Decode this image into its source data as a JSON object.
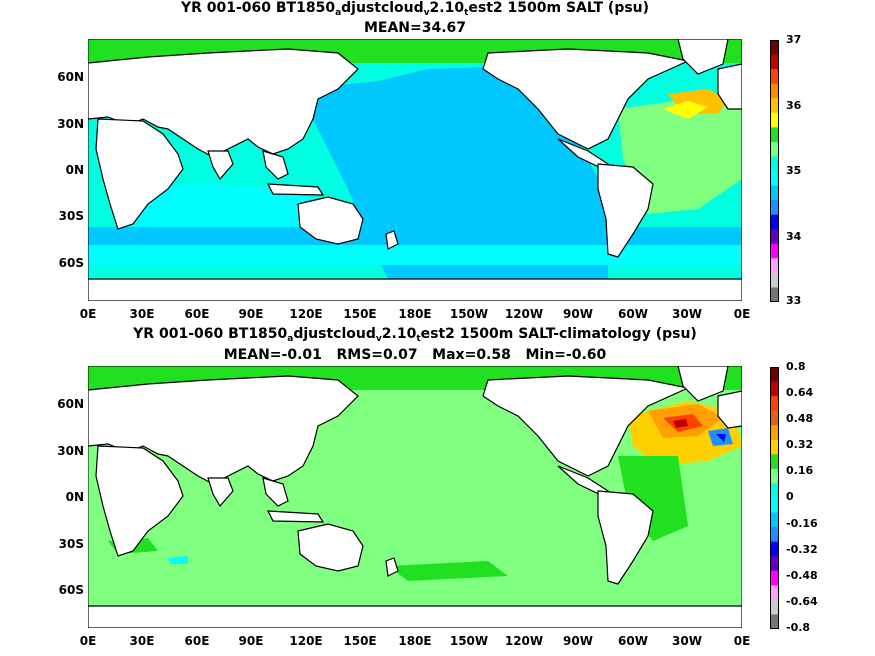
{
  "panels": [
    {
      "title_parts": [
        "YR 001-060 BT1850",
        "a",
        "djustcloud",
        "v",
        "2.10",
        "t",
        "est2 1500m SALT (psu)"
      ],
      "stats": "MEAN=34.67",
      "colorbar_labels": [
        "37",
        "36",
        "35",
        "34",
        "33"
      ],
      "colorbar_colors": [
        "#700000",
        "#c00000",
        "#ff4000",
        "#ff8c00",
        "#ffc000",
        "#ffff00",
        "#20e020",
        "#80ff80",
        "#00ffe0",
        "#00ffff",
        "#00c8ff",
        "#1e90ff",
        "#0000ff",
        "#6000c0",
        "#ff00ff",
        "#ffa0ff",
        "#cccccc",
        "#777777"
      ]
    },
    {
      "title_parts": [
        "YR 001-060 BT1850",
        "a",
        "djustcloud",
        "v",
        "2.10",
        "t",
        "est2 1500m SALT-climatology (psu)"
      ],
      "stats": "MEAN=-0.01   RMS=0.07   Max=0.58   Min=-0.60",
      "colorbar_labels": [
        "0.8",
        "0.64",
        "0.48",
        "0.32",
        "0.16",
        "0",
        "-0.16",
        "-0.32",
        "-0.48",
        "-0.64",
        "-0.8"
      ],
      "colorbar_colors": [
        "#700000",
        "#c00000",
        "#ff4000",
        "#e06020",
        "#ffa000",
        "#ffd000",
        "#20e020",
        "#80ff80",
        "#00ffe0",
        "#00ffff",
        "#00c8ff",
        "#1e90ff",
        "#0000ff",
        "#6000c0",
        "#ff00ff",
        "#ffa0ff",
        "#cccccc",
        "#777777"
      ]
    }
  ],
  "lat_labels": [
    "60N",
    "30N",
    "0N",
    "30S",
    "60S"
  ],
  "lon_labels": [
    "0E",
    "30E",
    "60E",
    "90E",
    "120E",
    "150E",
    "180E",
    "150W",
    "120W",
    "90W",
    "60W",
    "30W",
    "0E"
  ]
}
